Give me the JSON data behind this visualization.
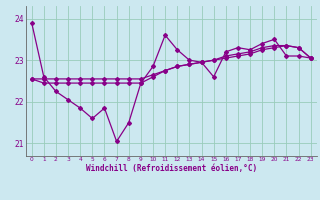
{
  "xlabel": "Windchill (Refroidissement éolien,°C)",
  "background_color": "#cce8f0",
  "grid_color": "#99ccbb",
  "line_color": "#880088",
  "xlim": [
    -0.5,
    23.5
  ],
  "ylim": [
    20.7,
    24.3
  ],
  "yticks": [
    21,
    22,
    23,
    24
  ],
  "xticks": [
    0,
    1,
    2,
    3,
    4,
    5,
    6,
    7,
    8,
    9,
    10,
    11,
    12,
    13,
    14,
    15,
    16,
    17,
    18,
    19,
    20,
    21,
    22,
    23
  ],
  "series1": [
    23.9,
    22.6,
    22.25,
    22.05,
    21.85,
    21.6,
    21.85,
    21.05,
    21.5,
    22.45,
    22.85,
    23.6,
    23.25,
    23.0,
    22.95,
    22.6,
    23.2,
    23.3,
    23.25,
    23.4,
    23.5,
    23.1,
    23.1,
    23.05
  ],
  "series2": [
    22.55,
    22.55,
    22.55,
    22.55,
    22.55,
    22.55,
    22.55,
    22.55,
    22.55,
    22.55,
    22.65,
    22.75,
    22.85,
    22.9,
    22.95,
    23.0,
    23.05,
    23.1,
    23.15,
    23.25,
    23.3,
    23.35,
    23.3,
    23.05
  ],
  "series3": [
    22.55,
    22.45,
    22.45,
    22.45,
    22.45,
    22.45,
    22.45,
    22.45,
    22.45,
    22.45,
    22.6,
    22.75,
    22.85,
    22.9,
    22.95,
    23.0,
    23.1,
    23.15,
    23.2,
    23.3,
    23.35,
    23.35,
    23.3,
    23.05
  ]
}
